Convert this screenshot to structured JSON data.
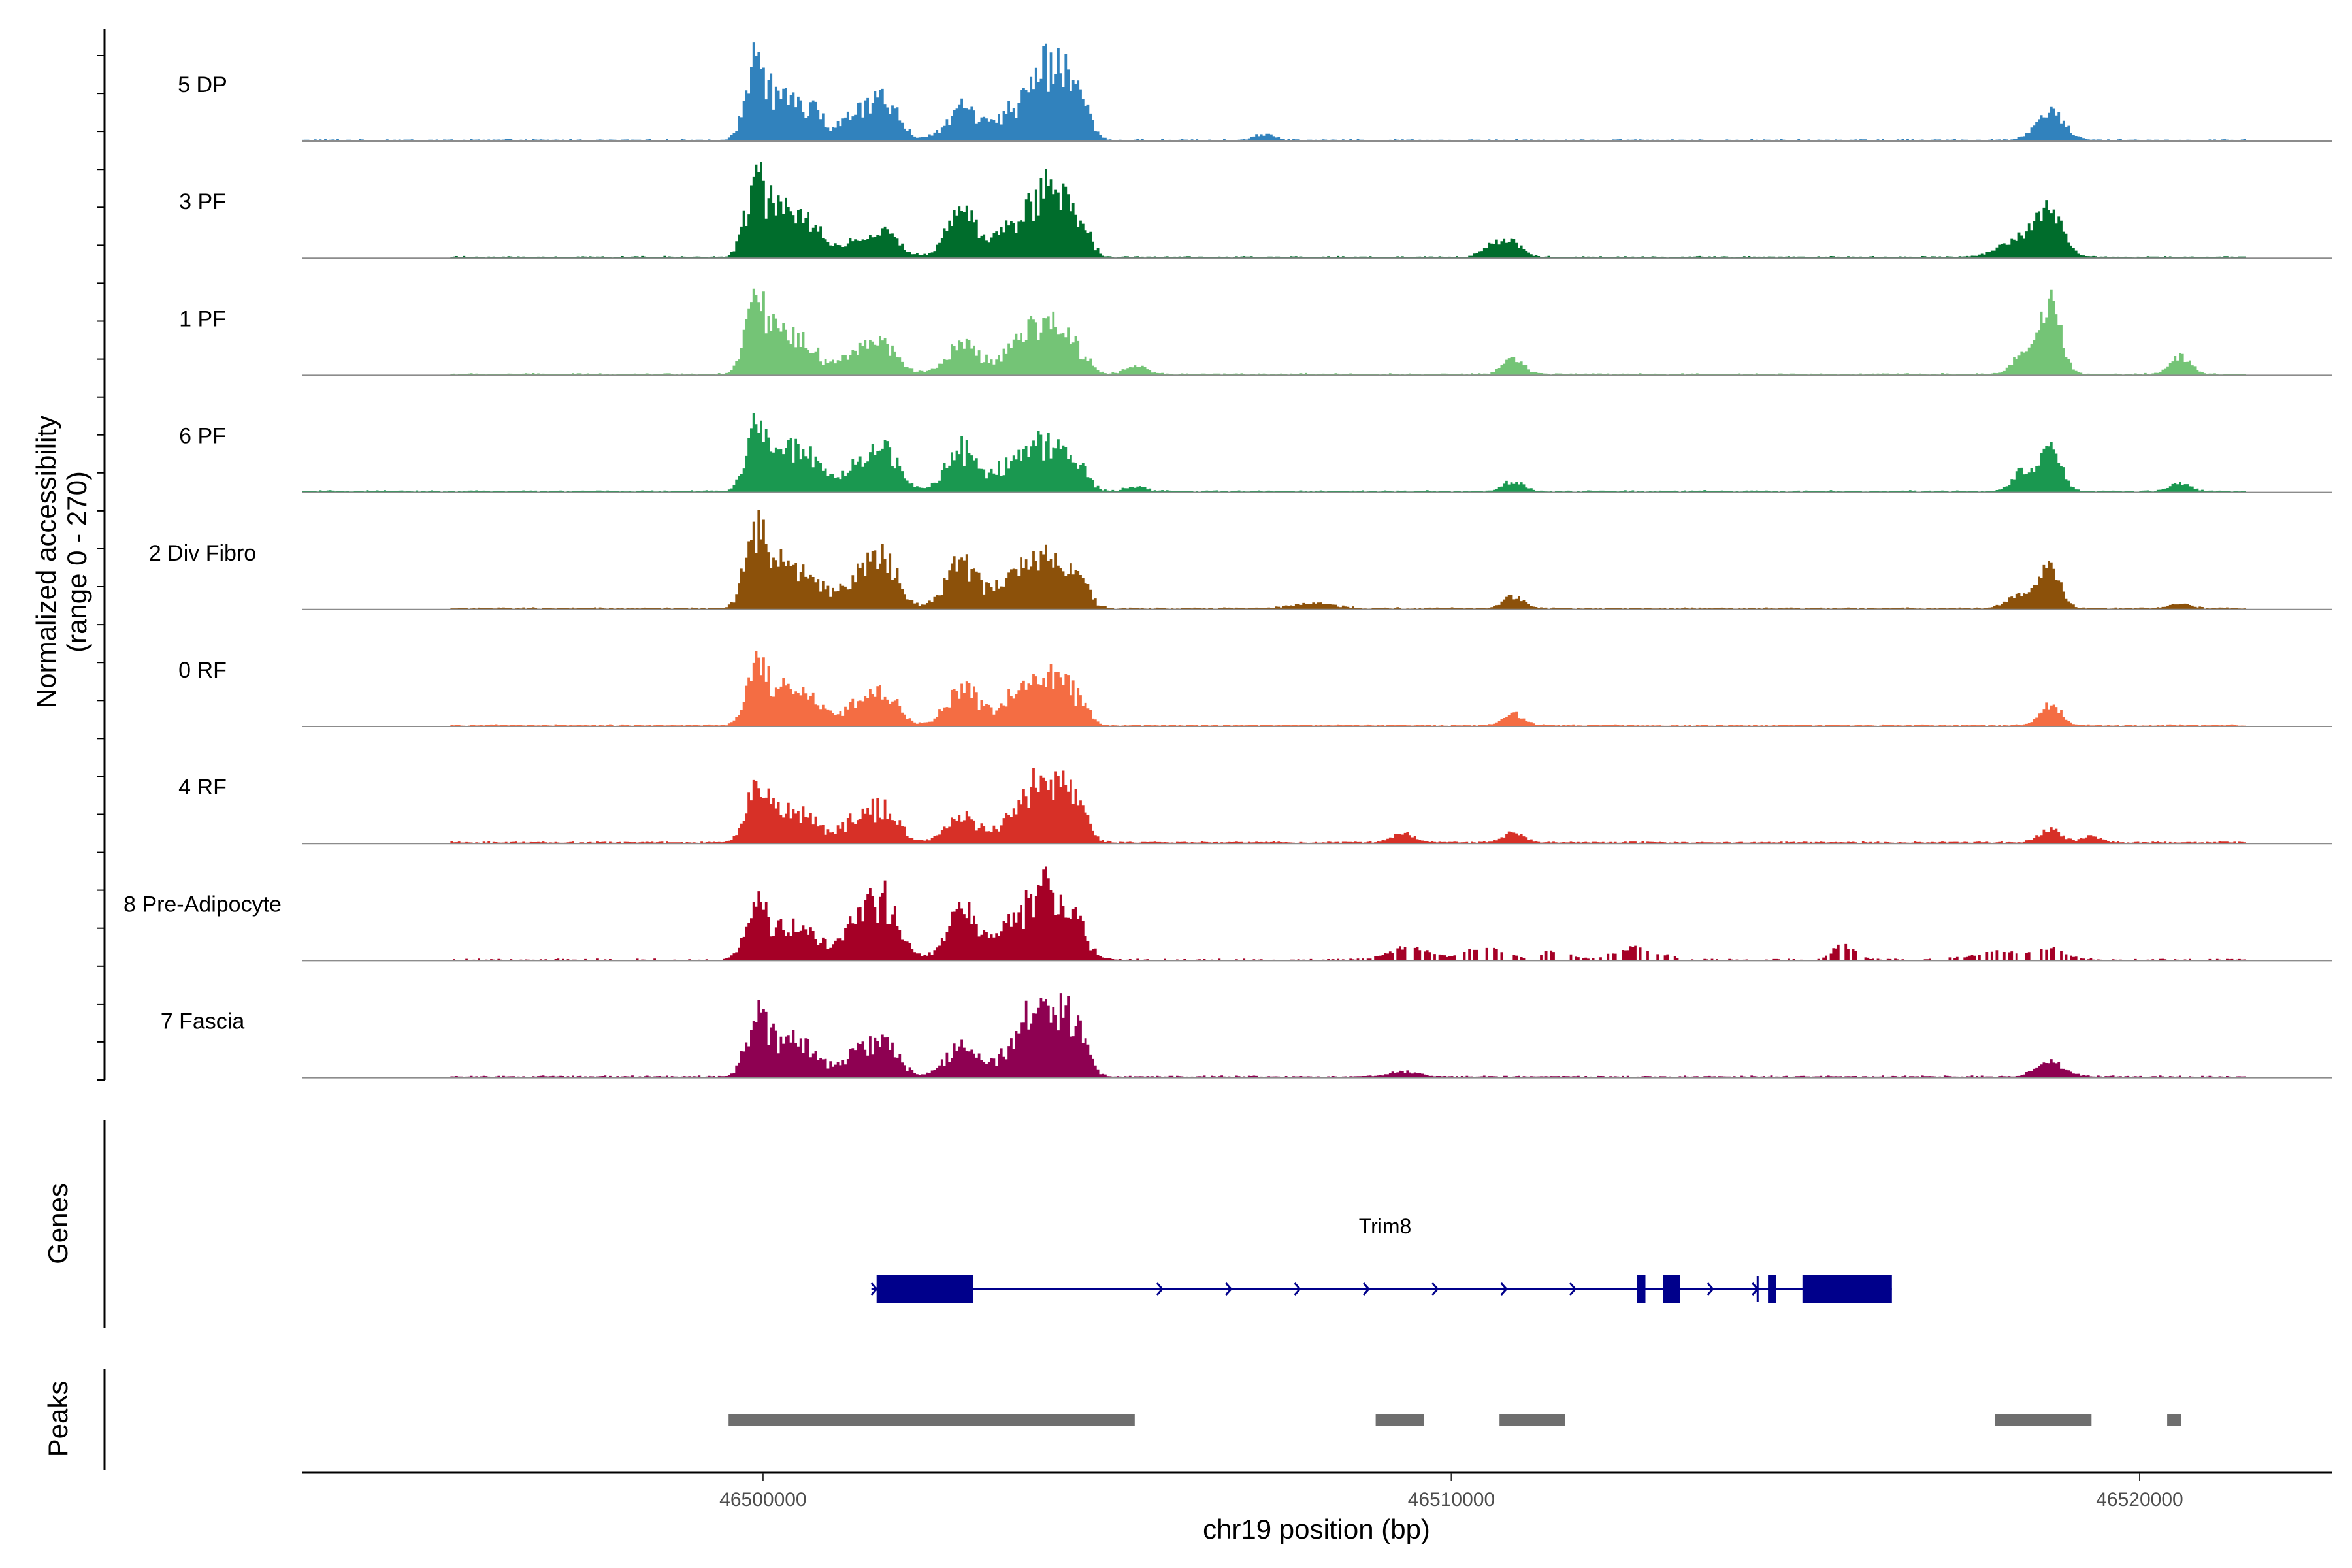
{
  "chart_data": {
    "type": "area",
    "title": "",
    "ylabel_line1": "Normalized accessibility",
    "ylabel_line2": "(range 0 - 270)",
    "ylim": [
      0,
      270
    ],
    "xlabel": "chr19 position (bp)",
    "xlim": [
      46493300,
      46522800
    ],
    "xticks": [
      46500000,
      46510000,
      46520000
    ],
    "xtick_labels": [
      "46500000",
      "46510000",
      "46520000"
    ],
    "genes_label": "Genes",
    "peaks_label": "Peaks",
    "tracks": [
      {
        "name": "5 DP",
        "color": "#3182BD",
        "scale": 0.95,
        "peaks": [
          [
            46499900,
            0.78,
            150
          ],
          [
            46500300,
            0.4,
            250
          ],
          [
            46500700,
            0.28,
            180
          ],
          [
            46501400,
            0.3,
            250
          ],
          [
            46501800,
            0.35,
            200
          ],
          [
            46502900,
            0.38,
            230
          ],
          [
            46503600,
            0.3,
            200
          ],
          [
            46504000,
            0.55,
            200
          ],
          [
            46504300,
            0.62,
            180
          ],
          [
            46504600,
            0.42,
            150
          ],
          [
            46507300,
            0.06,
            150
          ],
          [
            46518700,
            0.3,
            200
          ]
        ]
      },
      {
        "name": "3 PF",
        "color": "#006D2C",
        "scale": 0.95,
        "peaks": [
          [
            46499900,
            0.78,
            150
          ],
          [
            46500300,
            0.48,
            230
          ],
          [
            46500700,
            0.3,
            180
          ],
          [
            46501400,
            0.18,
            250
          ],
          [
            46501800,
            0.22,
            200
          ],
          [
            46502900,
            0.5,
            230
          ],
          [
            46503600,
            0.3,
            200
          ],
          [
            46504000,
            0.55,
            200
          ],
          [
            46504300,
            0.5,
            180
          ],
          [
            46504600,
            0.36,
            150
          ],
          [
            46510600,
            0.12,
            150
          ],
          [
            46510900,
            0.14,
            150
          ],
          [
            46518300,
            0.2,
            300
          ],
          [
            46518700,
            0.42,
            180
          ]
        ]
      },
      {
        "name": "1 PF",
        "color": "#74C476",
        "scale": 0.95,
        "peaks": [
          [
            46499900,
            0.75,
            150
          ],
          [
            46500300,
            0.42,
            230
          ],
          [
            46500700,
            0.2,
            180
          ],
          [
            46501400,
            0.24,
            250
          ],
          [
            46501800,
            0.28,
            200
          ],
          [
            46502900,
            0.34,
            230
          ],
          [
            46503600,
            0.25,
            200
          ],
          [
            46504000,
            0.45,
            200
          ],
          [
            46504300,
            0.32,
            180
          ],
          [
            46504600,
            0.22,
            150
          ],
          [
            46505400,
            0.1,
            150
          ],
          [
            46510900,
            0.16,
            150
          ],
          [
            46518300,
            0.2,
            150
          ],
          [
            46518700,
            0.76,
            150
          ],
          [
            46520600,
            0.18,
            150
          ]
        ]
      },
      {
        "name": "6 PF",
        "color": "#1A9850",
        "scale": 0.95,
        "peaks": [
          [
            46499900,
            0.62,
            150
          ],
          [
            46500300,
            0.42,
            230
          ],
          [
            46500700,
            0.3,
            180
          ],
          [
            46501400,
            0.3,
            250
          ],
          [
            46501800,
            0.36,
            200
          ],
          [
            46502900,
            0.48,
            230
          ],
          [
            46503600,
            0.32,
            200
          ],
          [
            46504000,
            0.4,
            200
          ],
          [
            46504300,
            0.35,
            180
          ],
          [
            46504600,
            0.22,
            150
          ],
          [
            46505400,
            0.05,
            150
          ],
          [
            46510900,
            0.1,
            150
          ],
          [
            46518300,
            0.2,
            150
          ],
          [
            46518700,
            0.5,
            150
          ],
          [
            46520600,
            0.08,
            150
          ]
        ]
      },
      {
        "name": "2 Div Fibro",
        "color": "#8C510A",
        "scale": 0.95,
        "peaks": [
          [
            46499900,
            0.95,
            150
          ],
          [
            46500300,
            0.5,
            230
          ],
          [
            46500700,
            0.28,
            180
          ],
          [
            46501400,
            0.38,
            250
          ],
          [
            46501800,
            0.45,
            200
          ],
          [
            46502900,
            0.52,
            230
          ],
          [
            46503600,
            0.32,
            200
          ],
          [
            46504000,
            0.42,
            200
          ],
          [
            46504300,
            0.4,
            180
          ],
          [
            46504600,
            0.28,
            150
          ],
          [
            46508000,
            0.05,
            300
          ],
          [
            46510900,
            0.12,
            150
          ],
          [
            46518300,
            0.15,
            200
          ],
          [
            46518700,
            0.4,
            150
          ],
          [
            46520600,
            0.05,
            150
          ]
        ]
      },
      {
        "name": "0 RF",
        "color": "#F46D43",
        "scale": 0.95,
        "peaks": [
          [
            46499900,
            0.6,
            150
          ],
          [
            46500300,
            0.38,
            230
          ],
          [
            46500700,
            0.22,
            180
          ],
          [
            46501400,
            0.26,
            250
          ],
          [
            46501800,
            0.28,
            200
          ],
          [
            46502900,
            0.42,
            230
          ],
          [
            46503600,
            0.26,
            200
          ],
          [
            46504000,
            0.48,
            200
          ],
          [
            46504300,
            0.35,
            180
          ],
          [
            46504600,
            0.24,
            150
          ],
          [
            46510900,
            0.12,
            150
          ],
          [
            46518700,
            0.22,
            150
          ]
        ]
      },
      {
        "name": "4 RF",
        "color": "#D73027",
        "scale": 0.95,
        "peaks": [
          [
            46499900,
            0.55,
            150
          ],
          [
            46500300,
            0.32,
            230
          ],
          [
            46500700,
            0.2,
            180
          ],
          [
            46501400,
            0.28,
            250
          ],
          [
            46501800,
            0.28,
            200
          ],
          [
            46502900,
            0.3,
            230
          ],
          [
            46503600,
            0.25,
            200
          ],
          [
            46504000,
            0.55,
            200
          ],
          [
            46504300,
            0.5,
            180
          ],
          [
            46504600,
            0.3,
            150
          ],
          [
            46509300,
            0.1,
            150
          ],
          [
            46510900,
            0.1,
            150
          ],
          [
            46518700,
            0.14,
            150
          ],
          [
            46519300,
            0.06,
            150
          ]
        ]
      },
      {
        "name": "8 Pre-Adipocyte",
        "color": "#A50026",
        "scale": 0.95,
        "peaks": [
          [
            46499900,
            0.55,
            150
          ],
          [
            46500300,
            0.35,
            230
          ],
          [
            46500700,
            0.22,
            180
          ],
          [
            46501400,
            0.45,
            250
          ],
          [
            46501800,
            0.55,
            200
          ],
          [
            46502900,
            0.55,
            230
          ],
          [
            46503600,
            0.32,
            200
          ],
          [
            46504000,
            0.62,
            200
          ],
          [
            46504300,
            0.48,
            180
          ],
          [
            46504600,
            0.3,
            150
          ],
          [
            46509400,
            0.12,
            300
          ],
          [
            46510500,
            0.15,
            250
          ],
          [
            46511500,
            0.1,
            200
          ],
          [
            46512700,
            0.12,
            300
          ],
          [
            46515700,
            0.16,
            150
          ],
          [
            46518000,
            0.08,
            400
          ],
          [
            46518700,
            0.1,
            200
          ]
        ]
      },
      {
        "name": "7 Fascia",
        "color": "#8E0152",
        "scale": 0.95,
        "peaks": [
          [
            46499900,
            0.6,
            150
          ],
          [
            46500300,
            0.4,
            230
          ],
          [
            46500700,
            0.22,
            180
          ],
          [
            46501400,
            0.28,
            250
          ],
          [
            46501800,
            0.3,
            200
          ],
          [
            46502900,
            0.35,
            230
          ],
          [
            46503600,
            0.3,
            200
          ],
          [
            46504000,
            0.7,
            200
          ],
          [
            46504300,
            0.6,
            180
          ],
          [
            46504600,
            0.35,
            150
          ],
          [
            46509300,
            0.05,
            200
          ],
          [
            46518700,
            0.15,
            200
          ]
        ]
      }
    ],
    "gene": {
      "name": "Trim8",
      "start": 46501650,
      "end": 46516400,
      "strand": "+",
      "exons": [
        [
          46501650,
          46503050
        ],
        [
          46512700,
          46512820
        ],
        [
          46513080,
          46513320
        ],
        [
          46514600,
          46514720
        ],
        [
          46515100,
          46516400
        ]
      ],
      "color": "#00008B"
    },
    "peak_regions": [
      [
        46499500,
        46505400
      ],
      [
        46508900,
        46509600
      ],
      [
        46510700,
        46511650
      ],
      [
        46517900,
        46519300
      ],
      [
        46520400,
        46520600
      ]
    ],
    "peak_color": "#6E6E6E"
  }
}
